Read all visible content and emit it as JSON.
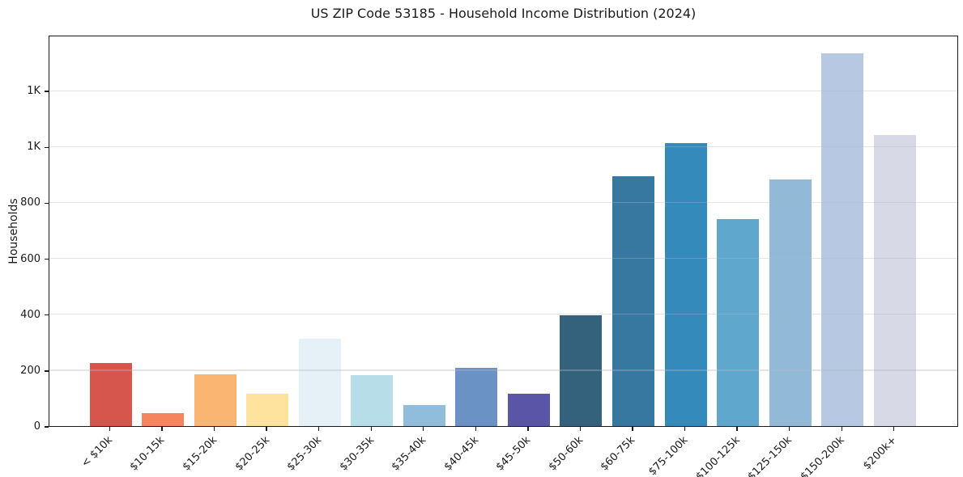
{
  "title": "US ZIP Code 53185 - Household Income Distribution (2024)",
  "y_axis": {
    "label": "Households",
    "tick_labels": [
      "0",
      "200",
      "400",
      "600",
      "800",
      "1K",
      "1K"
    ]
  },
  "chart_data": {
    "type": "bar",
    "title": "US ZIP Code 53185 - Household Income Distribution (2024)",
    "xlabel": "",
    "ylabel": "Households",
    "categories": [
      "< $10k",
      "$10-15k",
      "$15-20k",
      "$20-25k",
      "$25-30k",
      "$30-35k",
      "$35-40k",
      "$40-45k",
      "$45-50k",
      "$50-60k",
      "$60-75k",
      "$75-100k",
      "$100-125k",
      "$125-150k",
      "$150-200k",
      "$200k+"
    ],
    "values": [
      225,
      45,
      185,
      115,
      313,
      183,
      75,
      208,
      115,
      395,
      893,
      1012,
      740,
      881,
      1334,
      1042
    ],
    "bar_colors": [
      "#d6564e",
      "#f5845f",
      "#f9b571",
      "#fde39e",
      "#e5f1f7",
      "#b7dde9",
      "#90bddc",
      "#6a92c5",
      "#5b55a8",
      "#34617b",
      "#36789f",
      "#338abb",
      "#60a7cd",
      "#93b9d9",
      "#b7c9e2",
      "#d7d9e6"
    ],
    "ylim": [
      0,
      1400
    ],
    "yticks": [
      {
        "value": 0,
        "label": "0"
      },
      {
        "value": 200,
        "label": "200"
      },
      {
        "value": 400,
        "label": "400"
      },
      {
        "value": 600,
        "label": "600"
      },
      {
        "value": 800,
        "label": "800"
      },
      {
        "value": 1000,
        "label": "1K"
      },
      {
        "value": 1200,
        "label": "1K"
      }
    ],
    "grid": "horizontal-light",
    "legend": "none",
    "frame": "full-box"
  },
  "colors": {
    "spine": "#1a1a1a",
    "grid": "#e8eaee",
    "text": "#1a1a1a",
    "background": "#ffffff"
  }
}
